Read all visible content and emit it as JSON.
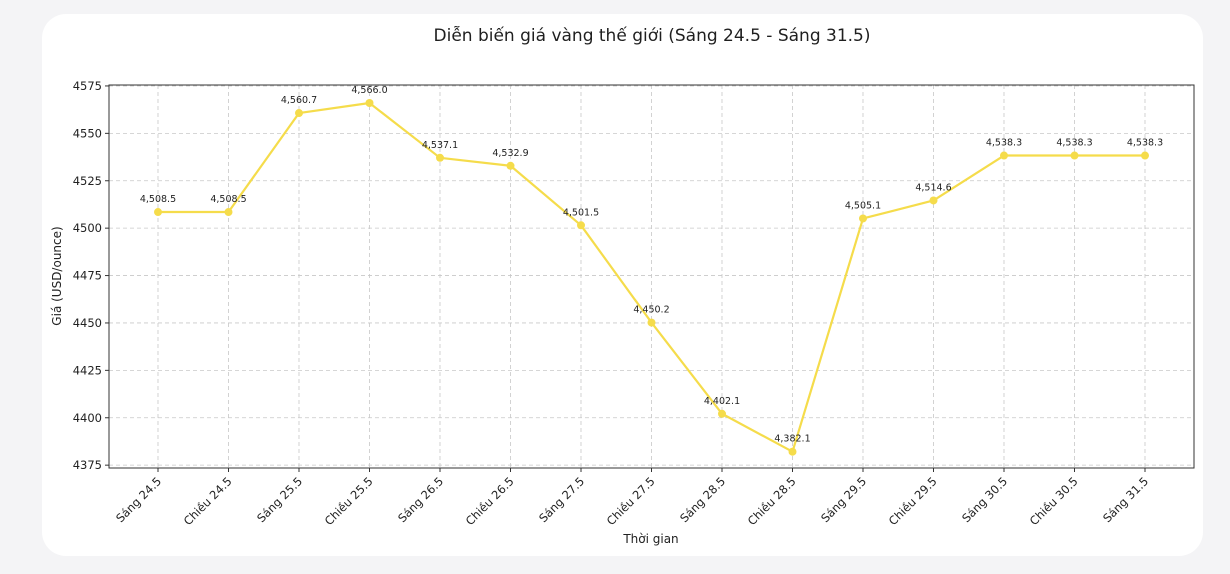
{
  "chart_data": {
    "type": "line",
    "title": "Diễn biến giá vàng thế giới (Sáng 24.5 - Sáng 31.5)",
    "xlabel": "Thời gian",
    "ylabel": "Giá (USD/ounce)",
    "categories": [
      "Sáng 24.5",
      "Chiều 24.5",
      "Sáng 25.5",
      "Chiều 25.5",
      "Sáng 26.5",
      "Chiều 26.5",
      "Sáng 27.5",
      "Chiều 27.5",
      "Sáng 28.5",
      "Chiều 28.5",
      "Sáng 29.5",
      "Chiều 29.5",
      "Sáng 30.5",
      "Chiều 30.5",
      "Sáng 31.5"
    ],
    "series": [
      {
        "values": [
          4508.5,
          4508.5,
          4560.7,
          4566.0,
          4537.1,
          4532.9,
          4501.5,
          4450.2,
          4402.1,
          4382.1,
          4505.1,
          4514.6,
          4538.3,
          4538.3,
          4538.3
        ]
      }
    ],
    "data_labels": [
      "4,508.5",
      "4,508.5",
      "4,560.7",
      "4,566.0",
      "4,537.1",
      "4,532.9",
      "4,501.5",
      "4,450.2",
      "4,402.1",
      "4,382.1",
      "4,505.1",
      "4,514.6",
      "4,538.3",
      "4,538.3",
      "4,538.3"
    ],
    "yticks": [
      4375,
      4400,
      4425,
      4450,
      4475,
      4500,
      4525,
      4550,
      4575
    ],
    "ylim": [
      4373.5,
      4575.5
    ],
    "grid": true,
    "line_color": "#f5dc4b"
  }
}
